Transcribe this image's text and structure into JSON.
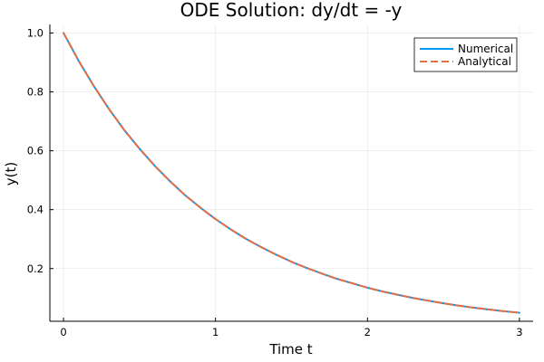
{
  "chart_data": {
    "type": "line",
    "title": "ODE Solution: dy/dt = -y",
    "xlabel": "Time t",
    "ylabel": "y(t)",
    "xlim": [
      -0.09,
      3.09
    ],
    "ylim": [
      0.021,
      1.029
    ],
    "xticks": [
      0,
      1,
      2,
      3
    ],
    "xtick_labels": [
      "0",
      "1",
      "2",
      "3"
    ],
    "yticks": [
      0.2,
      0.4,
      0.6,
      0.8,
      1.0
    ],
    "ytick_labels": [
      "0.2",
      "0.4",
      "0.6",
      "0.8",
      "1.0"
    ],
    "grid": true,
    "legend_position": "top-right",
    "x": [
      0,
      0.1,
      0.2,
      0.3,
      0.4,
      0.5,
      0.6,
      0.7,
      0.8,
      0.9,
      1.0,
      1.1,
      1.2,
      1.3,
      1.4,
      1.5,
      1.6,
      1.7,
      1.8,
      1.9,
      2.0,
      2.1,
      2.2,
      2.3,
      2.4,
      2.5,
      2.6,
      2.7,
      2.8,
      2.9,
      3.0
    ],
    "series": [
      {
        "name": "Numerical",
        "color": "#009af9",
        "style": "solid",
        "values": [
          1.0,
          0.905,
          0.819,
          0.741,
          0.67,
          0.607,
          0.549,
          0.497,
          0.449,
          0.407,
          0.368,
          0.333,
          0.301,
          0.273,
          0.247,
          0.223,
          0.202,
          0.183,
          0.165,
          0.15,
          0.135,
          0.122,
          0.111,
          0.1,
          0.091,
          0.082,
          0.074,
          0.067,
          0.061,
          0.055,
          0.05
        ]
      },
      {
        "name": "Analytical",
        "color": "#e26f46",
        "style": "dashed",
        "values": [
          1.0,
          0.905,
          0.819,
          0.741,
          0.67,
          0.607,
          0.549,
          0.497,
          0.449,
          0.407,
          0.368,
          0.333,
          0.301,
          0.273,
          0.247,
          0.223,
          0.202,
          0.183,
          0.165,
          0.15,
          0.135,
          0.122,
          0.111,
          0.1,
          0.091,
          0.082,
          0.074,
          0.067,
          0.061,
          0.055,
          0.05
        ]
      }
    ]
  }
}
